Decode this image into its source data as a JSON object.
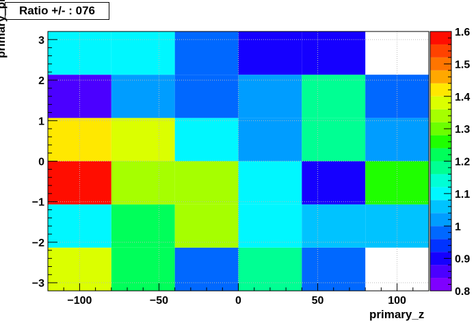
{
  "chart_data": {
    "type": "heatmap",
    "title": "Ratio +/- : 076",
    "xlabel": "primary_z",
    "ylabel": "primary_phi",
    "xlim": [
      -120,
      120
    ],
    "ylim": [
      -3.2,
      3.2
    ],
    "x_edges": [
      -120,
      -80,
      -40,
      0,
      40,
      80,
      120
    ],
    "y_edges": [
      -3.2,
      -2.1333,
      -1.0667,
      0,
      1.0667,
      2.1333,
      3.2
    ],
    "x_ticks": [
      -100,
      -50,
      0,
      50,
      100
    ],
    "x_tick_labels": [
      "−100",
      "−50",
      "0",
      "50",
      "100"
    ],
    "y_ticks": [
      -3,
      -2,
      -1,
      0,
      1,
      2,
      3
    ],
    "y_tick_labels": [
      "−3",
      "−2",
      "−1",
      "0",
      "1",
      "2",
      "3"
    ],
    "zlim": [
      0.8,
      1.6
    ],
    "z_ticks": [
      0.8,
      0.9,
      1.0,
      1.1,
      1.2,
      1.3,
      1.4,
      1.5,
      1.6
    ],
    "z_tick_labels": [
      "0.8",
      "0.9",
      "1",
      "1.1",
      "1.2",
      "1.3",
      "1.4",
      "1.5",
      "1.6"
    ],
    "grid": true,
    "palette": [
      "#7f00ff",
      "#4b00ff",
      "#1500ff",
      "#0033ff",
      "#0068ff",
      "#009dff",
      "#00c3ff",
      "#00f7ff",
      "#00ffd6",
      "#00ff93",
      "#00ff5a",
      "#1fff00",
      "#6cff00",
      "#a6ff00",
      "#dbff00",
      "#ffe800",
      "#ffa800",
      "#ff7500",
      "#ff4200",
      "#ff0d00"
    ],
    "values": [
      [
        1.38,
        1.21,
        0.98,
        1.17,
        0.98,
        null
      ],
      [
        1.09,
        1.21,
        1.32,
        1.1,
        1.06,
        1.06
      ],
      [
        1.56,
        1.33,
        1.33,
        1.1,
        0.89,
        1.27
      ],
      [
        1.44,
        1.38,
        1.09,
        1.02,
        1.17,
        1.02
      ],
      [
        0.87,
        1.02,
        0.98,
        1.02,
        1.17,
        0.98
      ],
      [
        1.09,
        1.09,
        0.97,
        0.89,
        0.89,
        null
      ]
    ]
  }
}
